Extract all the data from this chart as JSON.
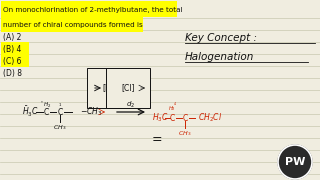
{
  "bg_color": "#f0ede0",
  "line_color": "#c8c8b0",
  "question_text_line1": "On monochlorination of 2-methylbutane, the total",
  "question_text_line2": "number of chiral compounds formed is",
  "question_highlight": "#ffff00",
  "options": [
    "(A) 2",
    "(B) 4",
    "(C) 6",
    "(D) 8"
  ],
  "option_highlight": [
    "none",
    "#ffff00",
    "#ffff00",
    "none"
  ],
  "key_concept_text": "Key Concept :",
  "halogenation_text": "Halogenation",
  "text_color": "#111111",
  "red_color": "#cc2200",
  "structure_color": "#111111",
  "logo_bg": "#2a2a2a"
}
